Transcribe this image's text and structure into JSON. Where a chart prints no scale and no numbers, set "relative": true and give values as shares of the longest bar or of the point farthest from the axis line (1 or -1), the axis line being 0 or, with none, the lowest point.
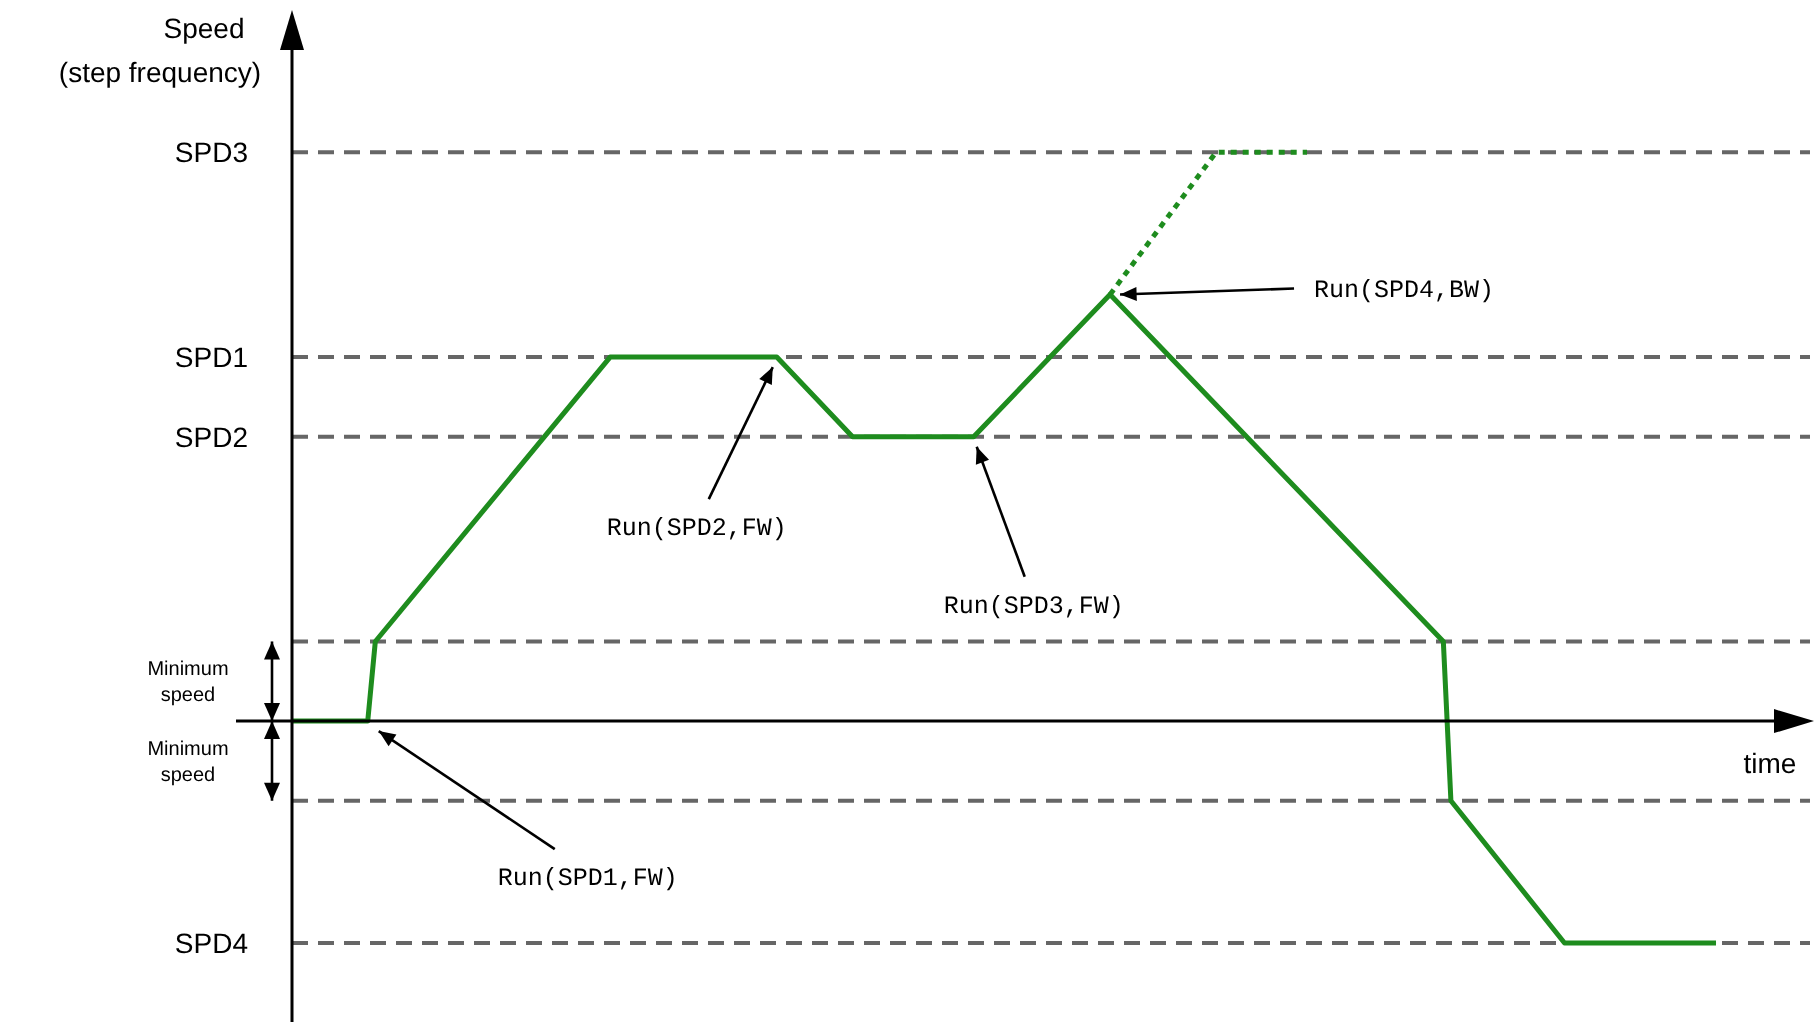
{
  "chart_data": {
    "type": "line",
    "relative": true,
    "ylabel": "Speed (step frequency)",
    "xlabel": "time",
    "grid": false,
    "marker": "none",
    "categories": [
      null,
      null,
      null,
      null,
      null,
      null,
      null,
      null,
      null,
      null,
      null,
      null,
      null,
      null,
      null,
      null,
      null,
      null,
      null,
      null,
      null,
      null,
      null,
      null,
      null,
      null,
      null,
      null,
      null,
      null,
      null,
      null,
      null,
      null,
      null,
      null,
      null,
      null,
      null,
      null,
      null,
      null,
      null,
      null,
      null,
      null,
      null,
      null,
      null,
      null,
      null,
      null,
      null,
      null,
      null,
      null,
      null,
      null,
      null,
      null,
      null,
      null,
      null,
      null,
      null,
      null,
      null,
      null,
      null,
      null,
      null,
      null,
      null,
      null,
      null,
      null,
      null,
      null,
      null,
      null,
      null,
      null,
      null,
      null,
      null,
      null,
      null,
      null,
      null,
      null,
      null,
      null,
      null,
      null,
      null,
      null,
      null,
      null,
      null,
      null,
      null,
      null,
      null,
      null,
      null,
      null,
      null,
      null,
      null,
      null,
      null,
      null,
      null,
      null,
      null,
      null,
      null,
      null,
      null,
      null,
      null,
      null,
      null,
      null,
      null,
      null,
      null,
      null,
      null,
      null,
      null,
      null,
      null,
      null,
      null,
      null,
      null,
      null,
      null,
      null,
      null,
      null,
      null,
      null,
      null,
      null,
      null,
      null,
      null,
      null,
      null,
      null,
      null,
      null,
      null,
      null,
      null,
      null,
      null,
      null,
      null,
      null,
      null,
      null,
      null,
      null,
      null,
      null,
      null,
      null,
      null,
      null,
      null,
      null,
      null,
      null,
      null,
      null,
      null,
      null,
      null,
      null,
      null,
      null,
      null,
      null,
      null,
      null,
      null
    ],
    "series": [
      {
        "color": "#1e8c1e",
        "line_style": "solid",
        "values": [
          0,
          null,
          null,
          null,
          null,
          null,
          null,
          null,
          null,
          null,
          0,
          0.14,
          null,
          null,
          null,
          null,
          null,
          null,
          null,
          null,
          null,
          null,
          null,
          null,
          null,
          null,
          null,
          null,
          null,
          null,
          null,
          null,
          null,
          null,
          null,
          null,
          null,
          null,
          null,
          null,
          null,
          null,
          0.64,
          null,
          null,
          null,
          null,
          null,
          null,
          null,
          null,
          null,
          null,
          null,
          null,
          null,
          null,
          null,
          null,
          null,
          null,
          null,
          null,
          null,
          0.64,
          null,
          null,
          null,
          null,
          null,
          null,
          null,
          null,
          null,
          0.5,
          null,
          null,
          null,
          null,
          null,
          null,
          null,
          null,
          null,
          null,
          null,
          null,
          null,
          null,
          null,
          0.5,
          null,
          null,
          null,
          null,
          null,
          null,
          null,
          null,
          null,
          null,
          null,
          null,
          null,
          null,
          null,
          null,
          null,
          0.75,
          null,
          null,
          null,
          null,
          null,
          null,
          null,
          null,
          null,
          null,
          null,
          null,
          null,
          null,
          null,
          null,
          null,
          null,
          null,
          null,
          null,
          null,
          null,
          null,
          null,
          null,
          null,
          null,
          null,
          null,
          null,
          null,
          null,
          null,
          null,
          null,
          null,
          null,
          null,
          null,
          null,
          null,
          null,
          0.14,
          -0.14,
          null,
          null,
          null,
          null,
          null,
          null,
          null,
          null,
          null,
          null,
          null,
          null,
          null,
          null,
          -0.39,
          null,
          null,
          null,
          null,
          null,
          null,
          null,
          null,
          null,
          null,
          null,
          null,
          null,
          null,
          null,
          null,
          null,
          null,
          null,
          -0.39
        ]
      },
      {
        "color": "#1e8c1e",
        "line_style": "dotted",
        "values": [
          null,
          null,
          null,
          null,
          null,
          null,
          null,
          null,
          null,
          null,
          null,
          null,
          null,
          null,
          null,
          null,
          null,
          null,
          null,
          null,
          null,
          null,
          null,
          null,
          null,
          null,
          null,
          null,
          null,
          null,
          null,
          null,
          null,
          null,
          null,
          null,
          null,
          null,
          null,
          null,
          null,
          null,
          null,
          null,
          null,
          null,
          null,
          null,
          null,
          null,
          null,
          null,
          null,
          null,
          null,
          null,
          null,
          null,
          null,
          null,
          null,
          null,
          null,
          null,
          null,
          null,
          null,
          null,
          null,
          null,
          null,
          null,
          null,
          null,
          null,
          null,
          null,
          null,
          null,
          null,
          null,
          null,
          null,
          null,
          null,
          null,
          null,
          null,
          null,
          null,
          null,
          null,
          null,
          null,
          null,
          null,
          null,
          null,
          null,
          null,
          null,
          null,
          null,
          null,
          null,
          null,
          null,
          null,
          0.75,
          null,
          null,
          null,
          null,
          null,
          null,
          null,
          null,
          null,
          null,
          null,
          null,
          null,
          1,
          null,
          null,
          null,
          null,
          null,
          null,
          null,
          null,
          null,
          null,
          null,
          1,
          null,
          null,
          null,
          null,
          null,
          null,
          null,
          null,
          null,
          null,
          null,
          null,
          null,
          null,
          null,
          null,
          null,
          null,
          null,
          null,
          null,
          null,
          null,
          null,
          null,
          null,
          null,
          null,
          null,
          null,
          null,
          null,
          null,
          null,
          null,
          null,
          null,
          null,
          null,
          null,
          null,
          null,
          null,
          null,
          null,
          null,
          null,
          null,
          null,
          null,
          null,
          null,
          null,
          null
        ]
      }
    ],
    "ref_lines": [
      {
        "axis": "y",
        "value": 1,
        "label": "SPD3",
        "color": "#666666",
        "line_style": "dashed"
      },
      {
        "axis": "y",
        "value": 0.64,
        "label": "SPD1",
        "color": "#666666",
        "line_style": "dashed"
      },
      {
        "axis": "y",
        "value": 0.5,
        "label": "SPD2",
        "color": "#666666",
        "line_style": "dashed"
      },
      {
        "axis": "y",
        "value": 0.14,
        "label": null,
        "color": "#666666",
        "line_style": "dashed"
      },
      {
        "axis": "y",
        "value": -0.14,
        "label": null,
        "color": "#666666",
        "line_style": "dashed"
      },
      {
        "axis": "y",
        "value": -0.39,
        "label": "SPD4",
        "color": "#666666",
        "line_style": "dashed"
      }
    ],
    "annotations": [
      "Run(SPD1,FW)",
      "Run(SPD2,FW)",
      "Run(SPD3,FW)",
      "Run(SPD4,BW)",
      "Minimum speed",
      "Minimum speed"
    ]
  }
}
